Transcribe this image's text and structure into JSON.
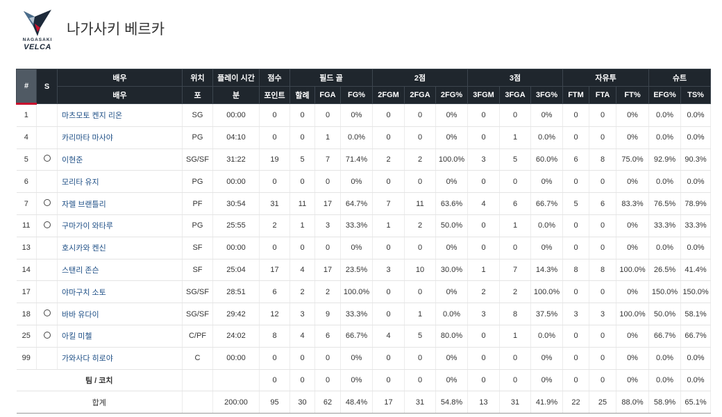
{
  "header": {
    "logo_line1": "NAGASAKI",
    "logo_line2": "VELCA",
    "team_name": "나가사키 베르카"
  },
  "table": {
    "group_headers": {
      "num": "#",
      "starter": "S",
      "player": "배우",
      "position": "위치",
      "minutes": "플레이 시간",
      "points": "점수",
      "fg": "필드 골",
      "two": "2점",
      "three": "3점",
      "ft": "자유투",
      "shoot": "슈트"
    },
    "sub_headers": [
      "배우",
      "포",
      "분",
      "포인트",
      "할례",
      "FGA",
      "FG%",
      "2FGM",
      "2FGA",
      "2FG%",
      "3FGM",
      "3FGA",
      "3FG%",
      "FTM",
      "FTA",
      "FT%",
      "EFG%",
      "TS%"
    ],
    "rows": [
      {
        "num": "1",
        "s": "",
        "name": "마츠모토 켄지 리온",
        "pos": "SG",
        "min": "00:00",
        "pts": "0",
        "fgm": "0",
        "fga": "0",
        "fgp": "0%",
        "m2": "0",
        "a2": "0",
        "p2": "0%",
        "m3": "0",
        "a3": "0",
        "p3": "0%",
        "ftm": "0",
        "fta": "0",
        "ftp": "0%",
        "efg": "0.0%",
        "ts": "0.0%"
      },
      {
        "num": "4",
        "s": "",
        "name": "카리마타 마사야",
        "pos": "PG",
        "min": "04:10",
        "pts": "0",
        "fgm": "0",
        "fga": "1",
        "fgp": "0.0%",
        "m2": "0",
        "a2": "0",
        "p2": "0%",
        "m3": "0",
        "a3": "1",
        "p3": "0.0%",
        "ftm": "0",
        "fta": "0",
        "ftp": "0%",
        "efg": "0.0%",
        "ts": "0.0%"
      },
      {
        "num": "5",
        "s": "○",
        "name": "이현준",
        "pos": "SG/SF",
        "min": "31:22",
        "pts": "19",
        "fgm": "5",
        "fga": "7",
        "fgp": "71.4%",
        "m2": "2",
        "a2": "2",
        "p2": "100.0%",
        "m3": "3",
        "a3": "5",
        "p3": "60.0%",
        "ftm": "6",
        "fta": "8",
        "ftp": "75.0%",
        "efg": "92.9%",
        "ts": "90.3%"
      },
      {
        "num": "6",
        "s": "",
        "name": "모리타 유지",
        "pos": "PG",
        "min": "00:00",
        "pts": "0",
        "fgm": "0",
        "fga": "0",
        "fgp": "0%",
        "m2": "0",
        "a2": "0",
        "p2": "0%",
        "m3": "0",
        "a3": "0",
        "p3": "0%",
        "ftm": "0",
        "fta": "0",
        "ftp": "0%",
        "efg": "0.0%",
        "ts": "0.0%"
      },
      {
        "num": "7",
        "s": "○",
        "name": "자렐 브랜틀리",
        "pos": "PF",
        "min": "30:54",
        "pts": "31",
        "fgm": "11",
        "fga": "17",
        "fgp": "64.7%",
        "m2": "7",
        "a2": "11",
        "p2": "63.6%",
        "m3": "4",
        "a3": "6",
        "p3": "66.7%",
        "ftm": "5",
        "fta": "6",
        "ftp": "83.3%",
        "efg": "76.5%",
        "ts": "78.9%"
      },
      {
        "num": "11",
        "s": "○",
        "name": "구마가이 와타루",
        "pos": "PG",
        "min": "25:55",
        "pts": "2",
        "fgm": "1",
        "fga": "3",
        "fgp": "33.3%",
        "m2": "1",
        "a2": "2",
        "p2": "50.0%",
        "m3": "0",
        "a3": "1",
        "p3": "0.0%",
        "ftm": "0",
        "fta": "0",
        "ftp": "0%",
        "efg": "33.3%",
        "ts": "33.3%"
      },
      {
        "num": "13",
        "s": "",
        "name": "호시카와 켄신",
        "pos": "SF",
        "min": "00:00",
        "pts": "0",
        "fgm": "0",
        "fga": "0",
        "fgp": "0%",
        "m2": "0",
        "a2": "0",
        "p2": "0%",
        "m3": "0",
        "a3": "0",
        "p3": "0%",
        "ftm": "0",
        "fta": "0",
        "ftp": "0%",
        "efg": "0.0%",
        "ts": "0.0%"
      },
      {
        "num": "14",
        "s": "",
        "name": "스탠리 존슨",
        "pos": "SF",
        "min": "25:04",
        "pts": "17",
        "fgm": "4",
        "fga": "17",
        "fgp": "23.5%",
        "m2": "3",
        "a2": "10",
        "p2": "30.0%",
        "m3": "1",
        "a3": "7",
        "p3": "14.3%",
        "ftm": "8",
        "fta": "8",
        "ftp": "100.0%",
        "efg": "26.5%",
        "ts": "41.4%"
      },
      {
        "num": "17",
        "s": "",
        "name": "야마구치 소토",
        "pos": "SG/SF",
        "min": "28:51",
        "pts": "6",
        "fgm": "2",
        "fga": "2",
        "fgp": "100.0%",
        "m2": "0",
        "a2": "0",
        "p2": "0%",
        "m3": "2",
        "a3": "2",
        "p3": "100.0%",
        "ftm": "0",
        "fta": "0",
        "ftp": "0%",
        "efg": "150.0%",
        "ts": "150.0%"
      },
      {
        "num": "18",
        "s": "○",
        "name": "바바 유다이",
        "pos": "SG/SF",
        "min": "29:42",
        "pts": "12",
        "fgm": "3",
        "fga": "9",
        "fgp": "33.3%",
        "m2": "0",
        "a2": "1",
        "p2": "0.0%",
        "m3": "3",
        "a3": "8",
        "p3": "37.5%",
        "ftm": "3",
        "fta": "3",
        "ftp": "100.0%",
        "efg": "50.0%",
        "ts": "58.1%"
      },
      {
        "num": "25",
        "s": "○",
        "name": "아킬 미첼",
        "pos": "C/PF",
        "min": "24:02",
        "pts": "8",
        "fgm": "4",
        "fga": "6",
        "fgp": "66.7%",
        "m2": "4",
        "a2": "5",
        "p2": "80.0%",
        "m3": "0",
        "a3": "1",
        "p3": "0.0%",
        "ftm": "0",
        "fta": "0",
        "ftp": "0%",
        "efg": "66.7%",
        "ts": "66.7%"
      },
      {
        "num": "99",
        "s": "",
        "name": "가와사다 히로야",
        "pos": "C",
        "min": "00:00",
        "pts": "0",
        "fgm": "0",
        "fga": "0",
        "fgp": "0%",
        "m2": "0",
        "a2": "0",
        "p2": "0%",
        "m3": "0",
        "a3": "0",
        "p3": "0%",
        "ftm": "0",
        "fta": "0",
        "ftp": "0%",
        "efg": "0.0%",
        "ts": "0.0%"
      }
    ],
    "team_row": {
      "label": "팀 / 코치",
      "pos": "",
      "min": "",
      "pts": "0",
      "fgm": "0",
      "fga": "0",
      "fgp": "0%",
      "m2": "0",
      "a2": "0",
      "p2": "0%",
      "m3": "0",
      "a3": "0",
      "p3": "0%",
      "ftm": "0",
      "fta": "0",
      "ftp": "0%",
      "efg": "0.0%",
      "ts": "0.0%"
    },
    "total_row": {
      "label": "합계",
      "pos": "",
      "min": "200:00",
      "pts": "95",
      "fgm": "30",
      "fga": "62",
      "fgp": "48.4%",
      "m2": "17",
      "a2": "31",
      "p2": "54.8%",
      "m3": "13",
      "a3": "31",
      "p3": "41.9%",
      "ftm": "22",
      "fta": "25",
      "ftp": "88.0%",
      "efg": "58.9%",
      "ts": "65.1%"
    }
  },
  "colors": {
    "header_bg": "#1f262d",
    "num_header_bg": "#505a64",
    "accent_red": "#c8102e",
    "name_link": "#1e4f86"
  }
}
